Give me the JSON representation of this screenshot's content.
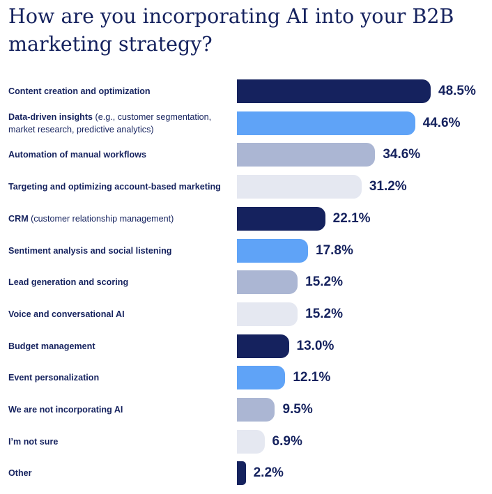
{
  "title": "How are you incorporating AI into your B2B marketing strategy?",
  "colors": [
    "#15225e",
    "#5fa3f7",
    "#abb6d3",
    "#e5e8f1"
  ],
  "chart_data": {
    "type": "bar",
    "orientation": "horizontal",
    "title": "How are you incorporating AI into your B2B marketing strategy?",
    "xlim": [
      0,
      50
    ],
    "unit": "%",
    "grid": false,
    "categories": [
      {
        "bold": "Content creation and optimization",
        "rest": ""
      },
      {
        "bold": "Data-driven insights",
        "rest": " (e.g., customer segmentation, market research, predictive analytics)"
      },
      {
        "bold": "Automation of manual workflows",
        "rest": ""
      },
      {
        "bold": "Targeting and optimizing account-based marketing",
        "rest": ""
      },
      {
        "bold": "CRM",
        "rest": " (customer relationship management)"
      },
      {
        "bold": "Sentiment analysis and social listening",
        "rest": ""
      },
      {
        "bold": "Lead generation and scoring",
        "rest": ""
      },
      {
        "bold": "Voice and conversational AI",
        "rest": ""
      },
      {
        "bold": "Budget management",
        "rest": ""
      },
      {
        "bold": "Event personalization",
        "rest": ""
      },
      {
        "bold": "We are not incorporating AI",
        "rest": ""
      },
      {
        "bold": "I’m not sure",
        "rest": ""
      },
      {
        "bold": "Other",
        "rest": ""
      }
    ],
    "values": [
      48.5,
      44.6,
      34.6,
      31.2,
      22.1,
      17.8,
      15.2,
      15.2,
      13.0,
      12.1,
      9.5,
      6.9,
      2.2
    ],
    "value_labels": [
      "48.5%",
      "44.6%",
      "34.6%",
      "31.2%",
      "22.1%",
      "17.8%",
      "15.2%",
      "15.2%",
      "13.0%",
      "12.1%",
      "9.5%",
      "6.9%",
      "2.2%"
    ]
  }
}
